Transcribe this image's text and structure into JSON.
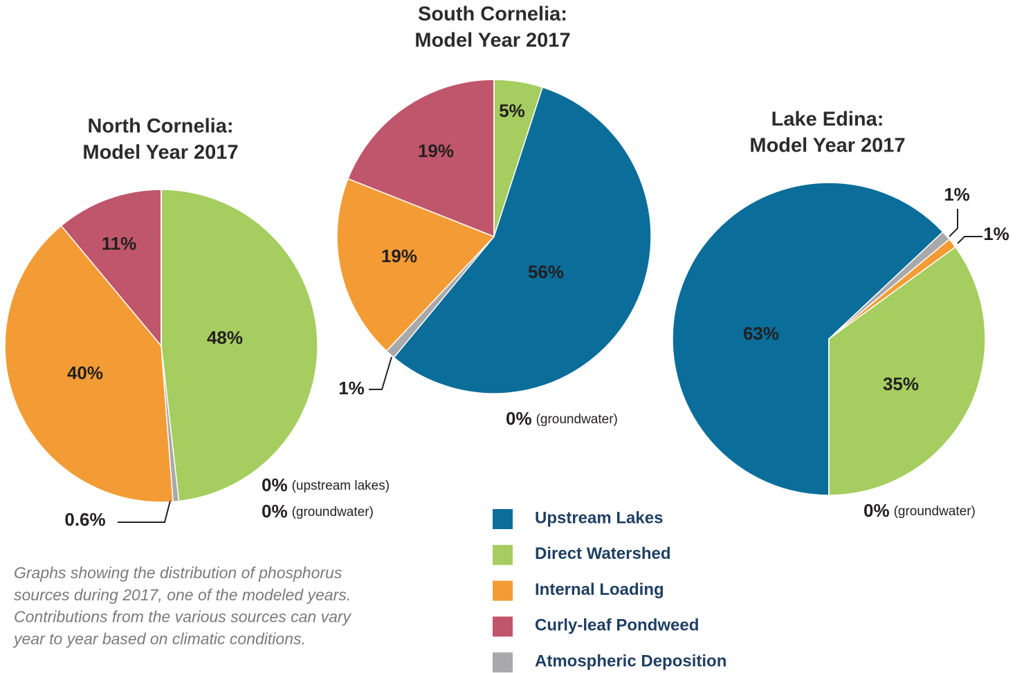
{
  "chart_data": [
    {
      "type": "pie",
      "title": [
        "North Cornelia:",
        "Model Year 2017"
      ],
      "values": [
        48,
        0.6,
        40,
        11,
        0,
        0
      ],
      "value_labels": [
        "48%",
        "0.6%",
        "40%",
        "11%",
        "0%",
        "0%"
      ],
      "notes": [
        null,
        null,
        null,
        null,
        "(upstream lakes)",
        "(groundwater)"
      ],
      "colors": [
        "#a5cd5f",
        "#a9a9ab",
        "#f39c35",
        "#c0566b",
        "#0b6d9a",
        null
      ]
    },
    {
      "type": "pie",
      "title": [
        "South Cornelia:",
        "Model Year 2017"
      ],
      "values": [
        5,
        56,
        1,
        19,
        19,
        0
      ],
      "value_labels": [
        "5%",
        "56%",
        "1%",
        "19%",
        "19%",
        "0%"
      ],
      "notes": [
        null,
        null,
        null,
        null,
        null,
        "(groundwater)"
      ],
      "colors": [
        "#a5cd5f",
        "#0b6d9a",
        "#a9a9ab",
        "#f39c35",
        "#c0566b",
        null
      ]
    },
    {
      "type": "pie",
      "title": [
        "Lake Edina:",
        "Model Year 2017"
      ],
      "values": [
        63,
        1,
        1,
        35,
        0
      ],
      "value_labels": [
        "63%",
        "1%",
        "1%",
        "35%",
        "0%"
      ],
      "notes": [
        null,
        null,
        null,
        null,
        "(groundwater)"
      ],
      "colors": [
        "#0b6d9a",
        "#a9a9ab",
        "#f39c35",
        "#a5cd5f",
        null
      ]
    }
  ],
  "legend": [
    {
      "name": "Upstream Lakes",
      "color": "#0b6d9a"
    },
    {
      "name": "Direct Watershed",
      "color": "#a5cd5f"
    },
    {
      "name": "Internal Loading",
      "color": "#f39c35"
    },
    {
      "name": "Curly-leaf Pondweed",
      "color": "#c0566b"
    },
    {
      "name": "Atmospheric Deposition",
      "color": "#a9a9ab"
    }
  ],
  "caption": [
    "Graphs showing the distribution of phosphorus",
    "sources during 2017, one of the modeled years.",
    "Contributions from the various sources can vary",
    "year to year based on climatic conditions."
  ]
}
